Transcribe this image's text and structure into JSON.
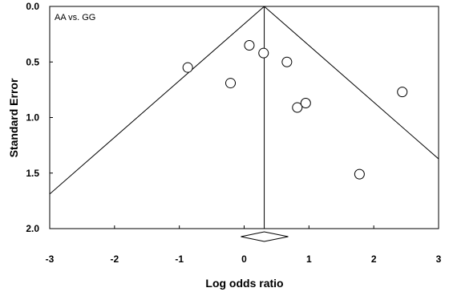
{
  "chart_data": {
    "type": "scatter",
    "subtype": "funnel-plot",
    "annotation": "AA vs. GG",
    "xlabel": "Log odds ratio",
    "ylabel": "Standard Error",
    "xlim": [
      -3,
      3
    ],
    "ylim": [
      0,
      2
    ],
    "y_inverted": true,
    "x_ticks": [
      -3,
      -2,
      -1,
      0,
      1,
      2,
      3
    ],
    "y_ticks": [
      0.0,
      0.5,
      1.0,
      1.5,
      2.0
    ],
    "x_tick_labels": [
      "-3",
      "-2",
      "-1",
      "0",
      "1",
      "2",
      "3"
    ],
    "y_tick_labels": [
      "0.0",
      "0.5",
      "1.0",
      "1.5",
      "2.0"
    ],
    "pooled_log_or": 0.31,
    "funnel_limit_multiplier": 1.96,
    "summary_diamond": {
      "center": 0.31,
      "lower": -0.05,
      "upper": 0.68
    },
    "points": [
      {
        "x": -0.87,
        "y": 0.55
      },
      {
        "x": -0.21,
        "y": 0.69
      },
      {
        "x": 0.08,
        "y": 0.35
      },
      {
        "x": 0.3,
        "y": 0.42
      },
      {
        "x": 0.66,
        "y": 0.5
      },
      {
        "x": 0.82,
        "y": 0.91
      },
      {
        "x": 0.95,
        "y": 0.87
      },
      {
        "x": 1.78,
        "y": 1.51
      },
      {
        "x": 2.44,
        "y": 0.77
      }
    ]
  }
}
